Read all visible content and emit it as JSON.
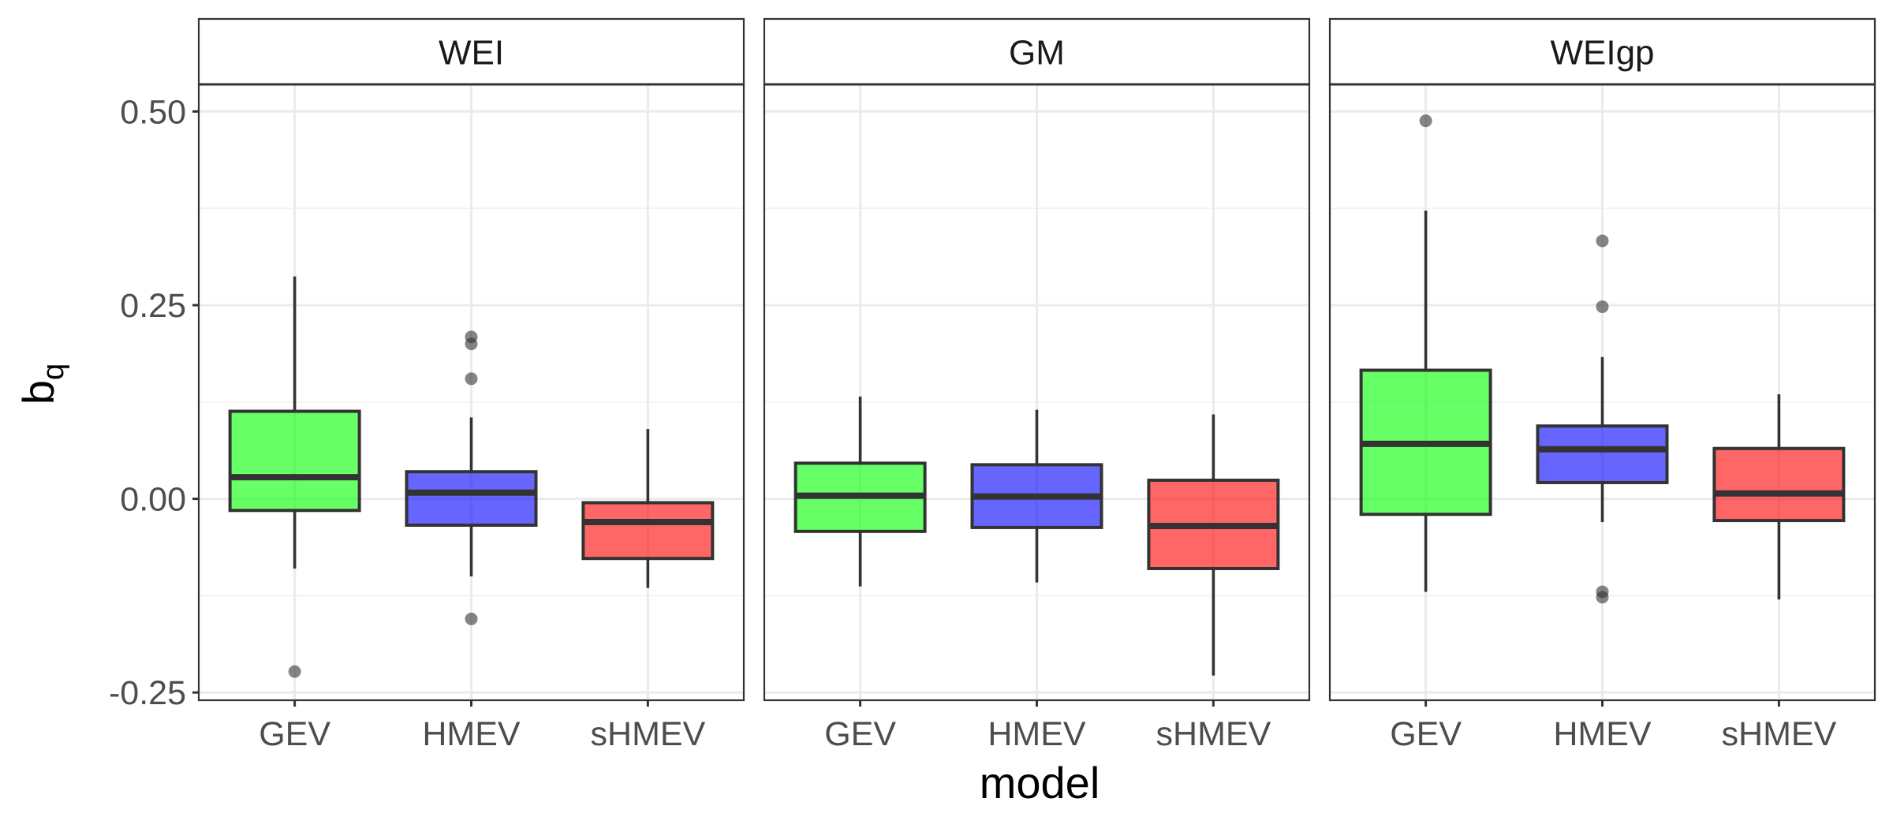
{
  "chart_data": {
    "type": "boxplot",
    "facet_by": "distribution",
    "ylabel_base": "b",
    "ylabel_sub": "q",
    "xlabel": "model",
    "ylim": [
      -0.26,
      0.535
    ],
    "y_ticks": [
      -0.25,
      0.0,
      0.25,
      0.5
    ],
    "y_tick_labels": [
      "-0.25",
      "0.00",
      "0.25",
      "0.50"
    ],
    "categories": [
      "GEV",
      "HMEV",
      "sHMEV"
    ],
    "colors": {
      "GEV": "#00ff00",
      "HMEV": "#0000ff",
      "sHMEV": "#ff0000"
    },
    "panels": [
      {
        "title": "WEI",
        "boxes": [
          {
            "model": "GEV",
            "low": -0.09,
            "q1": -0.015,
            "median": 0.028,
            "q3": 0.113,
            "high": 0.287,
            "outliers": [
              -0.223
            ]
          },
          {
            "model": "HMEV",
            "low": -0.1,
            "q1": -0.034,
            "median": 0.008,
            "q3": 0.035,
            "high": 0.105,
            "outliers": [
              0.209,
              0.2,
              0.155,
              -0.155
            ]
          },
          {
            "model": "sHMEV",
            "low": -0.115,
            "q1": -0.077,
            "median": -0.03,
            "q3": -0.005,
            "high": 0.09,
            "outliers": []
          }
        ]
      },
      {
        "title": "GM",
        "boxes": [
          {
            "model": "GEV",
            "low": -0.113,
            "q1": -0.042,
            "median": 0.004,
            "q3": 0.046,
            "high": 0.132,
            "outliers": []
          },
          {
            "model": "HMEV",
            "low": -0.108,
            "q1": -0.037,
            "median": 0.003,
            "q3": 0.044,
            "high": 0.115,
            "outliers": []
          },
          {
            "model": "sHMEV",
            "low": -0.228,
            "q1": -0.09,
            "median": -0.035,
            "q3": 0.024,
            "high": 0.109,
            "outliers": []
          }
        ]
      },
      {
        "title": "WEIgp",
        "boxes": [
          {
            "model": "GEV",
            "low": -0.12,
            "q1": -0.02,
            "median": 0.071,
            "q3": 0.166,
            "high": 0.372,
            "outliers": [
              0.488
            ]
          },
          {
            "model": "HMEV",
            "low": -0.03,
            "q1": 0.021,
            "median": 0.064,
            "q3": 0.094,
            "high": 0.183,
            "outliers": [
              0.333,
              0.248,
              -0.12,
              -0.127
            ]
          },
          {
            "model": "sHMEV",
            "low": -0.13,
            "q1": -0.028,
            "median": 0.007,
            "q3": 0.065,
            "high": 0.135,
            "outliers": []
          }
        ]
      }
    ]
  }
}
